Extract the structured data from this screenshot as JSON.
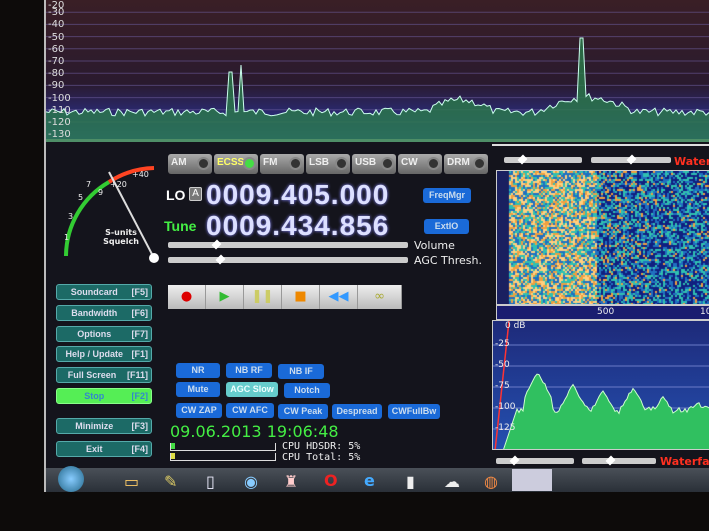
{
  "spectrum": {
    "db_labels": [
      "-20",
      "-30",
      "-40",
      "-50",
      "-60",
      "-70",
      "-80",
      "-90",
      "-100",
      "-110",
      "-120",
      "-130"
    ]
  },
  "modes": [
    {
      "label": "AM",
      "active": false
    },
    {
      "label": "ECSS",
      "active": true
    },
    {
      "label": "FM",
      "active": false
    },
    {
      "label": "LSB",
      "active": false
    },
    {
      "label": "USB",
      "active": false
    },
    {
      "label": "CW",
      "active": false
    },
    {
      "label": "DRM",
      "active": false
    }
  ],
  "lo": {
    "label": "LO",
    "badge": "A",
    "value": "0009.405.000"
  },
  "tune": {
    "label": "Tune",
    "value": "0009.434.856"
  },
  "freqmgr": "FreqMgr",
  "extio": "ExtIO",
  "sliders": {
    "volume": "Volume",
    "agc": "AGC Thresh."
  },
  "smeter": {
    "title": "S-units",
    "subtitle": "Squelch",
    "ticks": [
      "1",
      "3",
      "5",
      "7",
      "9",
      "+20",
      "+40"
    ]
  },
  "left_buttons": [
    {
      "label": "Soundcard",
      "key": "[F5]"
    },
    {
      "label": "Bandwidth",
      "key": "[F6]"
    },
    {
      "label": "Options",
      "key": "[F7]"
    },
    {
      "label": "Help / Update",
      "key": "[F1]"
    },
    {
      "label": "Full Screen",
      "key": "[F11]"
    },
    {
      "label": "Stop",
      "key": "[F2]"
    },
    {
      "label": "Minimize",
      "key": "[F3]"
    },
    {
      "label": "Exit",
      "key": "[F4]"
    }
  ],
  "transport": [
    "record-icon",
    "play-icon",
    "pause-icon",
    "stop-icon",
    "rewind-icon",
    "loop-icon"
  ],
  "dsp_buttons": [
    "NR",
    "NB RF",
    "NB IF",
    "Mute",
    "AGC Slow",
    "Notch",
    "CW ZAP",
    "CW AFC",
    "CW Peak",
    "Despread",
    "CWFullBw"
  ],
  "datetime": "09.06.2013 19:06:48",
  "cpu": {
    "hdsdr": "CPU HDSDR: 5%",
    "total": "CPU Total: 5%"
  },
  "waterfall": {
    "label": "Waterfall",
    "scale": [
      "500",
      "10"
    ]
  },
  "audio_spectrum": {
    "db_labels": [
      "0 dB",
      "-25",
      "-50",
      "-75",
      "-100",
      "-125"
    ]
  },
  "colors": {
    "accent_green": "#44ee44",
    "stop_button": "#55ee55",
    "button_blue": "#1a6ad8",
    "waterfall_label": "#ff3020"
  }
}
